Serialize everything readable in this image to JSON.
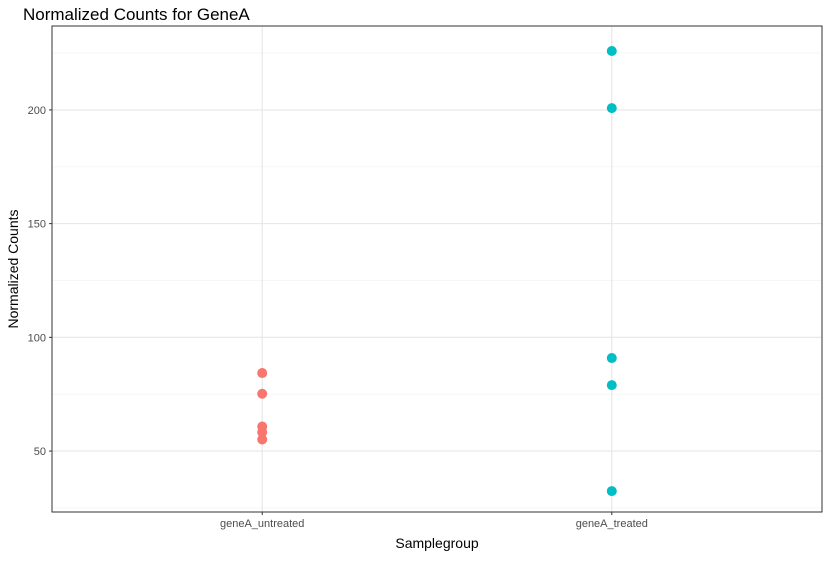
{
  "chart_data": {
    "type": "scatter",
    "title": "Normalized Counts for GeneA",
    "xlabel": "Samplegroup",
    "ylabel": "Normalized Counts",
    "categories": [
      "geneA_untreated",
      "geneA_treated"
    ],
    "yticks": [
      50,
      100,
      150,
      200
    ],
    "ylim": [
      23.2,
      236.9
    ],
    "grid": true,
    "series": [
      {
        "name": "geneA_untreated",
        "category": "geneA_untreated",
        "color": "#F8766D",
        "values": [
          84.3,
          75.2,
          60.8,
          58.3,
          55.1
        ]
      },
      {
        "name": "geneA_treated",
        "category": "geneA_treated",
        "color": "#00BFC4",
        "values": [
          225.9,
          200.8,
          90.9,
          79.0,
          32.4
        ]
      }
    ]
  }
}
